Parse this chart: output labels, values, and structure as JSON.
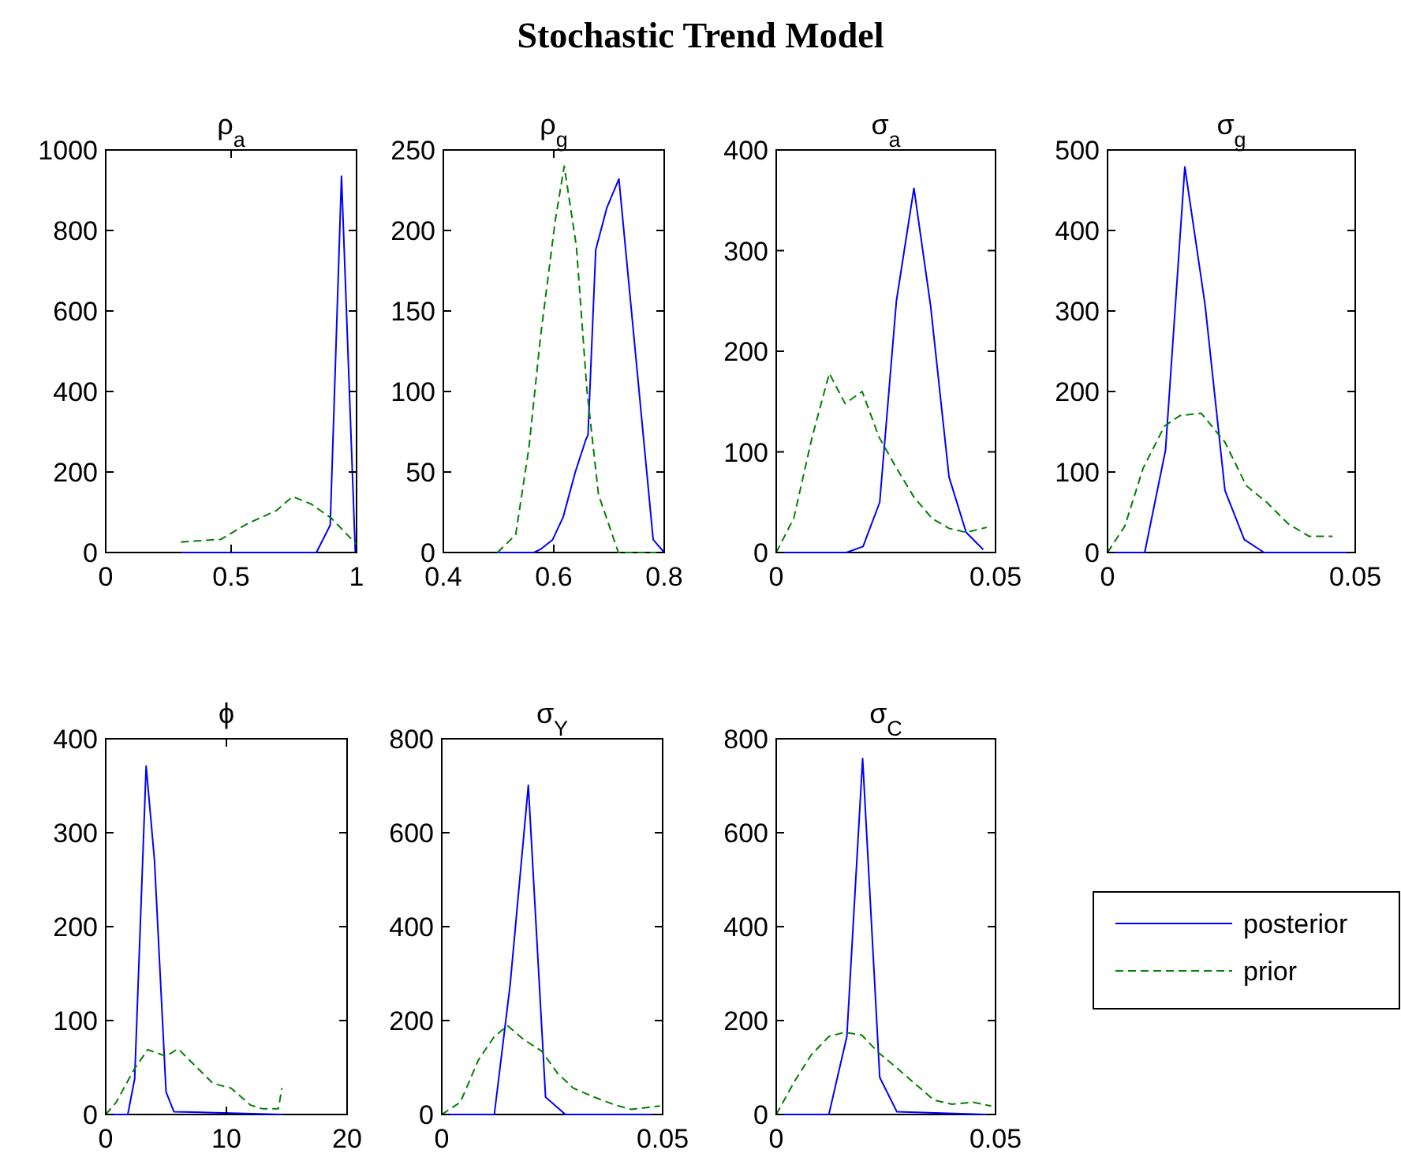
{
  "chart_data": [
    {
      "type": "line",
      "title": "ρ$_{a}$",
      "annotations": [
        "Stochastic Trend Model"
      ],
      "xlim": [
        0,
        1
      ],
      "xticks": [
        0,
        0.5,
        1
      ],
      "ylim": [
        0,
        1000
      ],
      "yticks": [
        0,
        200,
        400,
        600,
        800,
        1000
      ],
      "series": [
        {
          "color": "#0000ff",
          "line_style": "solid",
          "x": [
            0.3,
            0.84,
            0.895,
            0.94,
            0.995
          ],
          "values": [
            0,
            0,
            68,
            935,
            0
          ]
        },
        {
          "color": "#008000",
          "line_style": "dashed",
          "x": [
            0.3,
            0.46,
            0.566,
            0.68,
            0.745,
            0.82,
            0.9,
            1.0
          ],
          "values": [
            26,
            33,
            72,
            104,
            139,
            120,
            85,
            20
          ]
        }
      ]
    },
    {
      "type": "line",
      "title": "ρ$_{g}$",
      "xlim": [
        0.4,
        0.8
      ],
      "xticks": [
        0.4,
        0.6,
        0.8
      ],
      "ylim": [
        0,
        250
      ],
      "yticks": [
        0,
        50,
        100,
        150,
        200,
        250
      ],
      "series": [
        {
          "color": "#0000ff",
          "line_style": "solid",
          "x": [
            0.498,
            0.564,
            0.576,
            0.598,
            0.617,
            0.639,
            0.658,
            0.662,
            0.676,
            0.696,
            0.718,
            0.78,
            0.8
          ],
          "values": [
            0,
            0,
            2,
            8,
            22,
            50,
            70,
            73,
            188,
            214,
            232,
            8,
            0
          ]
        },
        {
          "color": "#008000",
          "line_style": "dashed",
          "x": [
            0.498,
            0.531,
            0.555,
            0.576,
            0.603,
            0.619,
            0.641,
            0.66,
            0.681,
            0.717,
            0.8
          ],
          "values": [
            0,
            11,
            65,
            134,
            207,
            240,
            190,
            101,
            36,
            0,
            0
          ]
        }
      ]
    },
    {
      "type": "line",
      "title": "σ$_{a}$",
      "xlim": [
        0,
        0.05
      ],
      "xticks": [
        0,
        0.05
      ],
      "ylim": [
        0,
        400
      ],
      "yticks": [
        0,
        100,
        200,
        300,
        400
      ],
      "series": [
        {
          "color": "#0000ff",
          "line_style": "solid",
          "x": [
            0,
            0.016,
            0.0198,
            0.0236,
            0.0274,
            0.0314,
            0.0352,
            0.0394,
            0.0433,
            0.0472
          ],
          "values": [
            0,
            0,
            6,
            50,
            250,
            362,
            245,
            75,
            20,
            3
          ]
        },
        {
          "color": "#008000",
          "line_style": "dashed",
          "x": [
            0,
            0.004,
            0.0082,
            0.0121,
            0.0157,
            0.0196,
            0.0234,
            0.0274,
            0.0314,
            0.0355,
            0.0394,
            0.0433,
            0.048
          ],
          "values": [
            0,
            34,
            115,
            178,
            148,
            160,
            115,
            84,
            55,
            34,
            24,
            20,
            25
          ]
        }
      ]
    },
    {
      "type": "line",
      "title": "σ$_{g}$",
      "xlim": [
        0,
        0.05
      ],
      "xticks": [
        0,
        0.05
      ],
      "ylim": [
        0,
        500
      ],
      "yticks": [
        0,
        100,
        200,
        300,
        400,
        500
      ],
      "series": [
        {
          "color": "#0000ff",
          "line_style": "solid",
          "x": [
            0,
            0.0075,
            0.0117,
            0.0156,
            0.0197,
            0.0237,
            0.0276,
            0.0316,
            0.05
          ],
          "values": [
            0,
            0,
            127,
            479,
            307,
            77,
            16,
            0,
            0
          ]
        },
        {
          "color": "#008000",
          "line_style": "dashed",
          "x": [
            0,
            0.0035,
            0.0072,
            0.0115,
            0.0146,
            0.0189,
            0.0237,
            0.028,
            0.0322,
            0.0364,
            0.0407,
            0.0454
          ],
          "values": [
            0,
            33,
            105,
            157,
            170,
            173,
            137,
            83,
            62,
            36,
            20,
            20
          ]
        }
      ]
    },
    {
      "type": "line",
      "title": "ϕ",
      "xlim": [
        0,
        20
      ],
      "xticks": [
        0,
        10,
        20
      ],
      "ylim": [
        0,
        400
      ],
      "yticks": [
        0,
        100,
        200,
        300,
        400
      ],
      "series": [
        {
          "color": "#0000ff",
          "line_style": "solid",
          "x": [
            0,
            1.83,
            2.4,
            3.35,
            4.04,
            5,
            5.65,
            14.6
          ],
          "values": [
            0,
            0,
            38,
            371,
            271,
            24,
            3,
            0
          ]
        },
        {
          "color": "#008000",
          "line_style": "dashed",
          "x": [
            0,
            0.87,
            2.4,
            3.48,
            5,
            6,
            7.4,
            8.9,
            10.4,
            12,
            13,
            14.3,
            14.6
          ],
          "values": [
            0,
            13,
            49,
            69,
            62,
            70,
            52,
            33,
            28,
            10,
            6,
            6,
            28
          ]
        }
      ]
    },
    {
      "type": "line",
      "title": "σ$_{Y}$",
      "xlim": [
        0,
        0.05
      ],
      "xticks": [
        0,
        0.05
      ],
      "ylim": [
        0,
        800
      ],
      "yticks": [
        0,
        200,
        400,
        600,
        800
      ],
      "series": [
        {
          "color": "#0000ff",
          "line_style": "solid",
          "x": [
            0,
            0.0119,
            0.0155,
            0.0196,
            0.0235,
            0.028,
            0.0476
          ],
          "values": [
            0,
            0,
            278,
            701,
            37,
            0,
            0
          ]
        },
        {
          "color": "#008000",
          "line_style": "dashed",
          "x": [
            0,
            0.0042,
            0.0083,
            0.0119,
            0.0149,
            0.0185,
            0.0226,
            0.0262,
            0.0298,
            0.0345,
            0.0393,
            0.0429,
            0.0494
          ],
          "values": [
            0,
            26,
            116,
            166,
            189,
            160,
            135,
            88,
            56,
            37,
            20,
            11,
            18
          ]
        }
      ]
    },
    {
      "type": "line",
      "title": "σ$_{C}$",
      "legend": "right",
      "xlim": [
        0,
        0.05
      ],
      "xticks": [
        0,
        0.05
      ],
      "ylim": [
        0,
        800
      ],
      "yticks": [
        0,
        200,
        400,
        600,
        800
      ],
      "series": [
        {
          "name": "posterior",
          "color": "#0000ff",
          "line_style": "solid",
          "x": [
            0,
            0.012,
            0.0161,
            0.0197,
            0.0236,
            0.0275,
            0.0478
          ],
          "values": [
            0,
            0,
            166,
            758,
            79,
            6,
            0
          ]
        },
        {
          "name": "prior",
          "color": "#008000",
          "line_style": "dashed",
          "x": [
            0,
            0.0042,
            0.008,
            0.012,
            0.0156,
            0.0195,
            0.0233,
            0.0275,
            0.0317,
            0.0359,
            0.04,
            0.0449,
            0.049
          ],
          "values": [
            0,
            71,
            127,
            166,
            175,
            169,
            132,
            99,
            65,
            31,
            22,
            26,
            18
          ]
        }
      ]
    }
  ]
}
